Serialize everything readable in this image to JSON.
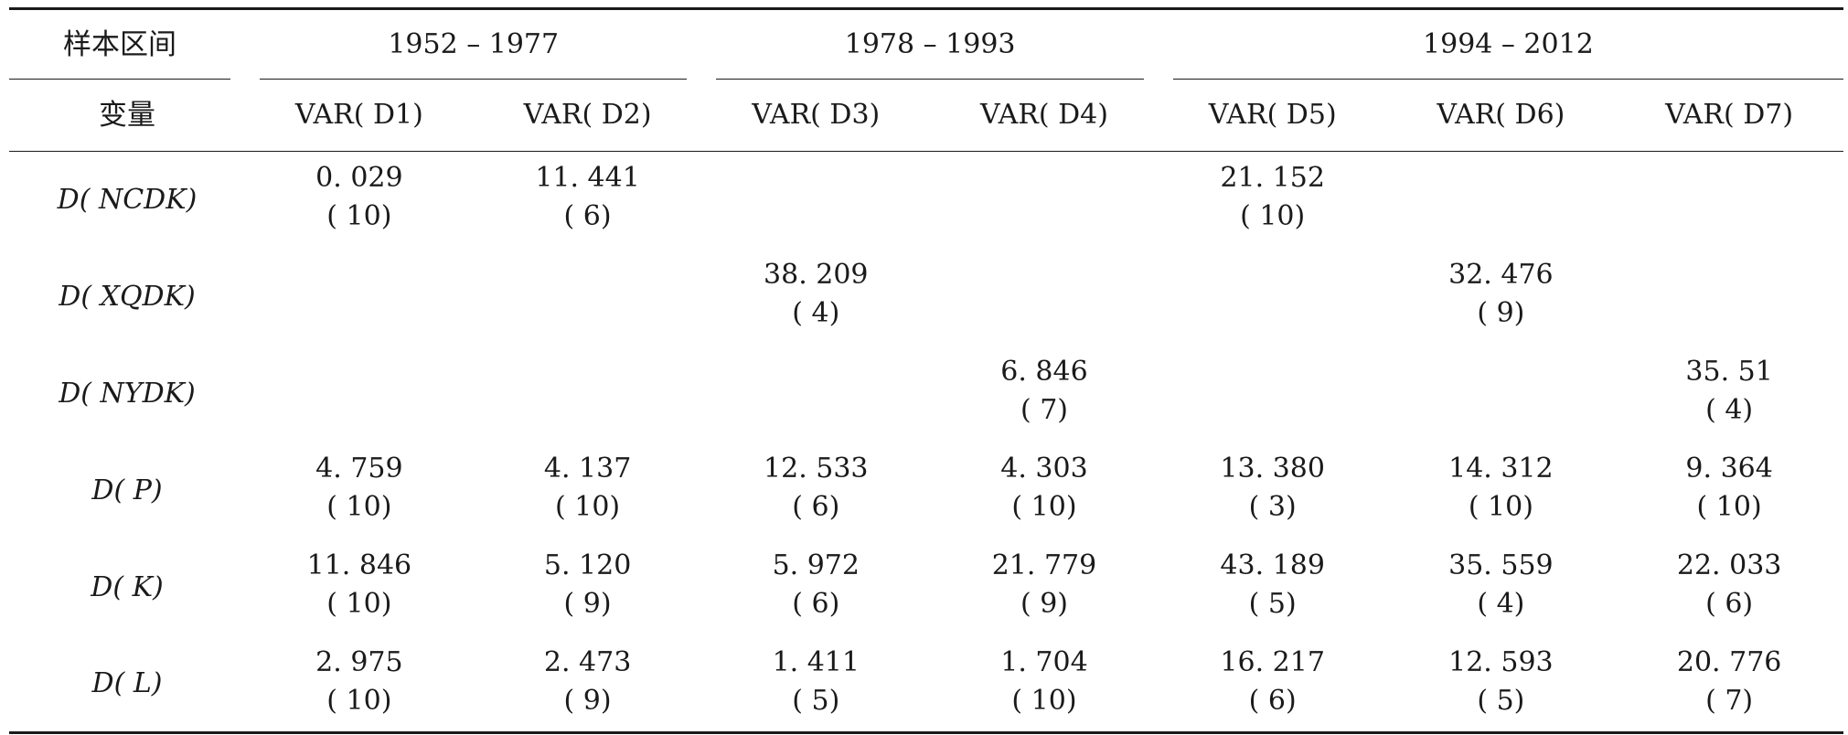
{
  "header": {
    "sample_label": "样本区间",
    "variable_label": "变量",
    "periods": [
      "1952 – 1977",
      "1978 – 1993",
      "1994 – 2012"
    ],
    "columns": [
      "VAR( D1)",
      "VAR( D2)",
      "VAR( D3)",
      "VAR( D4)",
      "VAR( D5)",
      "VAR( D6)",
      "VAR( D7)"
    ]
  },
  "rows": [
    {
      "label": "D( NCDK)",
      "cells": [
        {
          "value": "0. 029",
          "lag": "( 10)"
        },
        {
          "value": "11. 441",
          "lag": "( 6)"
        },
        {
          "value": "",
          "lag": ""
        },
        {
          "value": "",
          "lag": ""
        },
        {
          "value": "21. 152",
          "lag": "( 10)"
        },
        {
          "value": "",
          "lag": ""
        },
        {
          "value": "",
          "lag": ""
        }
      ]
    },
    {
      "label": "D( XQDK)",
      "cells": [
        {
          "value": "",
          "lag": ""
        },
        {
          "value": "",
          "lag": ""
        },
        {
          "value": "38. 209",
          "lag": "( 4)"
        },
        {
          "value": "",
          "lag": ""
        },
        {
          "value": "",
          "lag": ""
        },
        {
          "value": "32. 476",
          "lag": "( 9)"
        },
        {
          "value": "",
          "lag": ""
        }
      ]
    },
    {
      "label": "D( NYDK)",
      "cells": [
        {
          "value": "",
          "lag": ""
        },
        {
          "value": "",
          "lag": ""
        },
        {
          "value": "",
          "lag": ""
        },
        {
          "value": "6. 846",
          "lag": "( 7)"
        },
        {
          "value": "",
          "lag": ""
        },
        {
          "value": "",
          "lag": ""
        },
        {
          "value": "35. 51",
          "lag": "( 4)"
        }
      ]
    },
    {
      "label": "D( P)",
      "cells": [
        {
          "value": "4. 759",
          "lag": "( 10)"
        },
        {
          "value": "4. 137",
          "lag": "( 10)"
        },
        {
          "value": "12. 533",
          "lag": "( 6)"
        },
        {
          "value": "4. 303",
          "lag": "( 10)"
        },
        {
          "value": "13. 380",
          "lag": "( 3)"
        },
        {
          "value": "14. 312",
          "lag": "( 10)"
        },
        {
          "value": "9. 364",
          "lag": "( 10)"
        }
      ]
    },
    {
      "label": "D( K)",
      "cells": [
        {
          "value": "11. 846",
          "lag": "( 10)"
        },
        {
          "value": "5. 120",
          "lag": "( 9)"
        },
        {
          "value": "5. 972",
          "lag": "( 6)"
        },
        {
          "value": "21. 779",
          "lag": "( 9)"
        },
        {
          "value": "43. 189",
          "lag": "( 5)"
        },
        {
          "value": "35. 559",
          "lag": "( 4)"
        },
        {
          "value": "22. 033",
          "lag": "( 6)"
        }
      ]
    },
    {
      "label": "D( L)",
      "cells": [
        {
          "value": "2. 975",
          "lag": "( 10)"
        },
        {
          "value": "2. 473",
          "lag": "( 9)"
        },
        {
          "value": "1. 411",
          "lag": "( 5)"
        },
        {
          "value": "1. 704",
          "lag": "( 10)"
        },
        {
          "value": "16. 217",
          "lag": "( 6)"
        },
        {
          "value": "12. 593",
          "lag": "( 5)"
        },
        {
          "value": "20. 776",
          "lag": "( 7)"
        }
      ]
    }
  ]
}
